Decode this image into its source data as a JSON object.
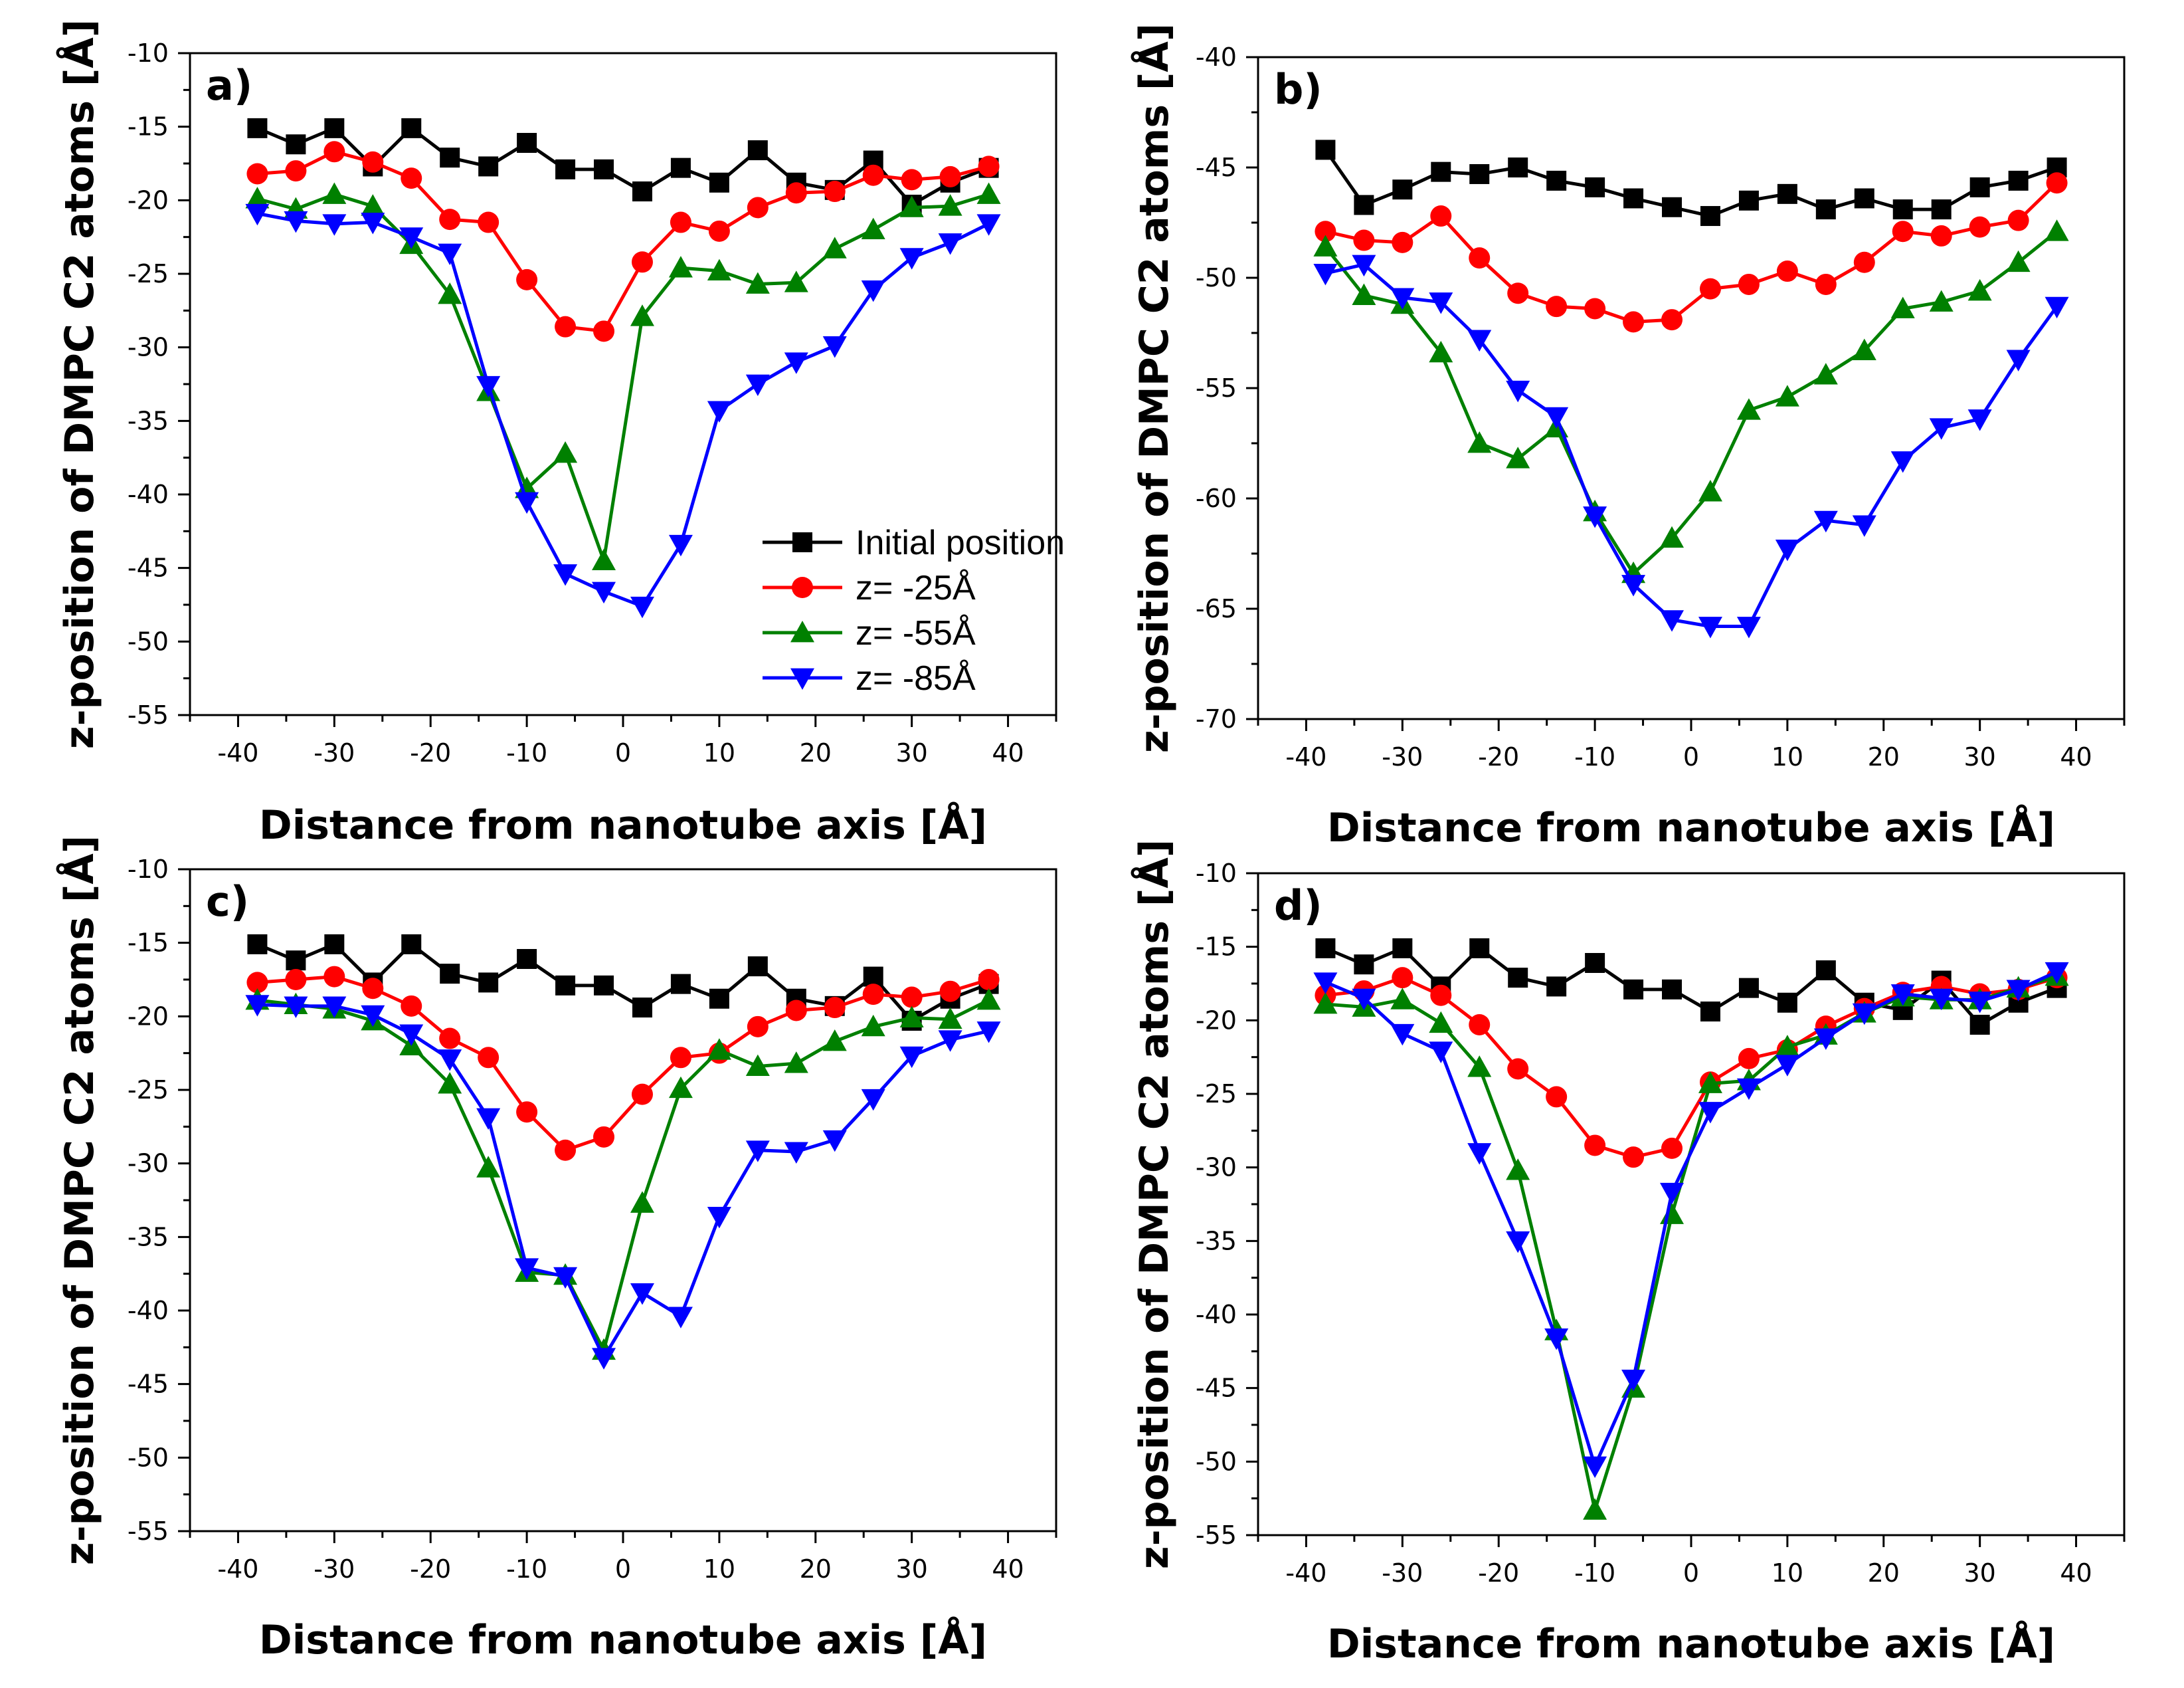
{
  "figure": {
    "colors": {
      "Initial position": "#000000",
      "z= -25Å": "#ff0000",
      "z= -55Å": "#008000",
      "z= -85Å": "#0000ff"
    },
    "markers": {
      "Initial position": "square",
      "z= -25Å": "circle",
      "z= -55Å": "triangle-up",
      "z= -85Å": "triangle-down"
    }
  },
  "chart_data": [
    {
      "panel": "a)",
      "type": "line",
      "xlabel": "Distance from nanotube axis [Å]",
      "ylabel": "z-position of DMPC C2 atoms [Å]",
      "xlim": [
        -45,
        45
      ],
      "ylim": [
        -55,
        -10
      ],
      "xticks": [
        -40,
        -30,
        -20,
        -10,
        0,
        10,
        20,
        30,
        40
      ],
      "yticks": [
        -10,
        -15,
        -20,
        -25,
        -30,
        -35,
        -40,
        -45,
        -50,
        -55
      ],
      "legend": [
        "Initial position",
        "z= -25Å",
        "z= -55Å",
        "z= -85Å"
      ],
      "legend_position": "center-right",
      "x": [
        -38,
        -34,
        -30,
        -26,
        -22,
        -18,
        -14,
        -10,
        -6,
        -2,
        2,
        6,
        10,
        14,
        18,
        22,
        26,
        30,
        34,
        38
      ],
      "series": [
        {
          "name": "Initial position",
          "values": [
            -15.1,
            -16.2,
            -15.1,
            -17.7,
            -15.1,
            -17.1,
            -17.7,
            -16.1,
            -17.9,
            -17.9,
            -19.4,
            -17.8,
            -18.8,
            -16.6,
            -18.8,
            -19.3,
            -17.3,
            -20.3,
            -18.8,
            -17.8
          ]
        },
        {
          "name": "z= -25Å",
          "values": [
            -18.2,
            -18.0,
            -16.7,
            -17.4,
            -18.5,
            -21.3,
            -21.5,
            -25.4,
            -28.6,
            -28.9,
            -24.2,
            -21.5,
            -22.1,
            -20.5,
            -19.5,
            -19.4,
            -18.3,
            -18.6,
            -18.4,
            -17.7
          ]
        },
        {
          "name": "z= -55Å",
          "values": [
            -19.9,
            -20.6,
            -19.6,
            -20.4,
            -23.0,
            -26.4,
            -33.0,
            -39.6,
            -37.2,
            -44.5,
            -27.9,
            -24.6,
            -24.8,
            -25.7,
            -25.6,
            -23.3,
            -22.0,
            -20.5,
            -20.4,
            -19.6
          ]
        },
        {
          "name": "z= -85Å",
          "values": [
            -20.9,
            -21.4,
            -21.6,
            -21.5,
            -22.5,
            -23.6,
            -32.6,
            -40.5,
            -45.4,
            -46.6,
            -47.6,
            -43.4,
            -34.3,
            -32.5,
            -31.0,
            -29.9,
            -26.1,
            -23.9,
            -22.9,
            -21.6
          ]
        }
      ]
    },
    {
      "panel": "b)",
      "type": "line",
      "xlabel": "Distance from nanotube axis [Å]",
      "ylabel": "z-position of DMPC C2 atoms [Å]",
      "xlim": [
        -45,
        45
      ],
      "ylim": [
        -70,
        -40
      ],
      "xticks": [
        -40,
        -30,
        -20,
        -10,
        0,
        10,
        20,
        30,
        40
      ],
      "yticks": [
        -40,
        -45,
        -50,
        -55,
        -60,
        -65,
        -70
      ],
      "x": [
        -38,
        -34,
        -30,
        -26,
        -22,
        -18,
        -14,
        -10,
        -6,
        -2,
        2,
        6,
        10,
        14,
        18,
        22,
        26,
        30,
        34,
        38
      ],
      "series": [
        {
          "name": "Initial position",
          "values": [
            -44.2,
            -46.7,
            -46.0,
            -45.2,
            -45.3,
            -45.0,
            -45.6,
            -45.9,
            -46.4,
            -46.8,
            -47.2,
            -46.5,
            -46.2,
            -46.9,
            -46.4,
            -46.9,
            -46.9,
            -45.9,
            -45.6,
            -45.0
          ]
        },
        {
          "name": "z= -25Å",
          "values": [
            -47.9,
            -48.3,
            -48.4,
            -47.2,
            -49.1,
            -50.7,
            -51.3,
            -51.4,
            -52.0,
            -51.9,
            -50.5,
            -50.3,
            -49.7,
            -50.3,
            -49.3,
            -47.9,
            -48.1,
            -47.7,
            -47.4,
            -45.7
          ]
        },
        {
          "name": "z= -55Å",
          "values": [
            -48.6,
            -50.8,
            -51.2,
            -53.4,
            -57.5,
            -58.2,
            -56.8,
            -60.6,
            -63.4,
            -61.8,
            -59.7,
            -56.0,
            -55.4,
            -54.4,
            -53.3,
            -51.4,
            -51.1,
            -50.6,
            -49.3,
            -47.9
          ]
        },
        {
          "name": "z= -85Å",
          "values": [
            -49.8,
            -49.4,
            -50.9,
            -51.1,
            -52.8,
            -55.1,
            -56.3,
            -60.8,
            -63.9,
            -65.5,
            -65.8,
            -65.8,
            -62.3,
            -61.0,
            -61.2,
            -58.3,
            -56.8,
            -56.4,
            -53.7,
            -51.3
          ]
        }
      ]
    },
    {
      "panel": "c)",
      "type": "line",
      "xlabel": "Distance from nanotube axis [Å]",
      "ylabel": "z-position of DMPC C2 atoms [Å]",
      "xlim": [
        -45,
        45
      ],
      "ylim": [
        -55,
        -10
      ],
      "xticks": [
        -40,
        -30,
        -20,
        -10,
        0,
        10,
        20,
        30,
        40
      ],
      "yticks": [
        -10,
        -15,
        -20,
        -25,
        -30,
        -35,
        -40,
        -45,
        -50,
        -55
      ],
      "x": [
        -38,
        -34,
        -30,
        -26,
        -22,
        -18,
        -14,
        -10,
        -6,
        -2,
        2,
        6,
        10,
        14,
        18,
        22,
        26,
        30,
        34,
        38
      ],
      "series": [
        {
          "name": "Initial position",
          "values": [
            -15.1,
            -16.2,
            -15.1,
            -17.7,
            -15.1,
            -17.1,
            -17.7,
            -16.1,
            -17.9,
            -17.9,
            -19.4,
            -17.8,
            -18.8,
            -16.6,
            -18.8,
            -19.3,
            -17.3,
            -20.3,
            -18.8,
            -17.8
          ]
        },
        {
          "name": "z= -25Å",
          "values": [
            -17.7,
            -17.5,
            -17.3,
            -18.1,
            -19.3,
            -21.5,
            -22.8,
            -26.5,
            -29.1,
            -28.2,
            -25.3,
            -22.8,
            -22.5,
            -20.7,
            -19.6,
            -19.4,
            -18.5,
            -18.7,
            -18.3,
            -17.5
          ]
        },
        {
          "name": "z= -55Å",
          "values": [
            -18.9,
            -19.2,
            -19.5,
            -20.3,
            -22.0,
            -24.6,
            -30.3,
            -37.4,
            -37.6,
            -42.7,
            -32.7,
            -24.9,
            -22.3,
            -23.4,
            -23.2,
            -21.7,
            -20.7,
            -20.1,
            -20.2,
            -18.9
          ]
        },
        {
          "name": "z= -85Å",
          "values": [
            -19.2,
            -19.3,
            -19.3,
            -19.9,
            -21.2,
            -22.9,
            -26.9,
            -37.1,
            -37.7,
            -43.2,
            -38.8,
            -40.4,
            -33.6,
            -29.1,
            -29.2,
            -28.4,
            -25.6,
            -22.7,
            -21.6,
            -21.0
          ]
        }
      ]
    },
    {
      "panel": "d)",
      "type": "line",
      "xlabel": "Distance from nanotube axis [Å]",
      "ylabel": "z-position of DMPC C2 atoms [Å]",
      "xlim": [
        -45,
        45
      ],
      "ylim": [
        -55,
        -10
      ],
      "xticks": [
        -40,
        -30,
        -20,
        -10,
        0,
        10,
        20,
        30,
        40
      ],
      "yticks": [
        -10,
        -15,
        -20,
        -25,
        -30,
        -35,
        -40,
        -45,
        -50,
        -55
      ],
      "x": [
        -38,
        -34,
        -30,
        -26,
        -22,
        -18,
        -14,
        -10,
        -6,
        -2,
        2,
        6,
        10,
        14,
        18,
        22,
        26,
        30,
        34,
        38
      ],
      "series": [
        {
          "name": "Initial position",
          "values": [
            -15.1,
            -16.2,
            -15.1,
            -17.7,
            -15.1,
            -17.1,
            -17.7,
            -16.1,
            -17.9,
            -17.9,
            -19.4,
            -17.8,
            -18.8,
            -16.6,
            -18.8,
            -19.3,
            -17.3,
            -20.3,
            -18.8,
            -17.8
          ]
        },
        {
          "name": "z= -25Å",
          "values": [
            -18.3,
            -18.0,
            -17.1,
            -18.3,
            -20.3,
            -23.3,
            -25.2,
            -28.5,
            -29.3,
            -28.7,
            -24.2,
            -22.6,
            -22.0,
            -20.4,
            -19.2,
            -18.1,
            -17.7,
            -18.2,
            -17.9,
            -17.1
          ]
        },
        {
          "name": "z= -55Å",
          "values": [
            -18.9,
            -19.1,
            -18.6,
            -20.2,
            -23.2,
            -30.2,
            -41.1,
            -53.3,
            -45.0,
            -33.2,
            -24.3,
            -24.1,
            -21.8,
            -21.0,
            -19.5,
            -18.4,
            -18.6,
            -18.6,
            -17.8,
            -17.0
          ]
        },
        {
          "name": "z= -85Å",
          "values": [
            -17.4,
            -18.5,
            -20.9,
            -22.1,
            -29.0,
            -35.0,
            -41.6,
            -50.3,
            -44.4,
            -31.7,
            -26.2,
            -24.6,
            -23.0,
            -21.2,
            -19.5,
            -18.2,
            -18.5,
            -18.7,
            -17.9,
            -16.7
          ]
        }
      ]
    }
  ]
}
